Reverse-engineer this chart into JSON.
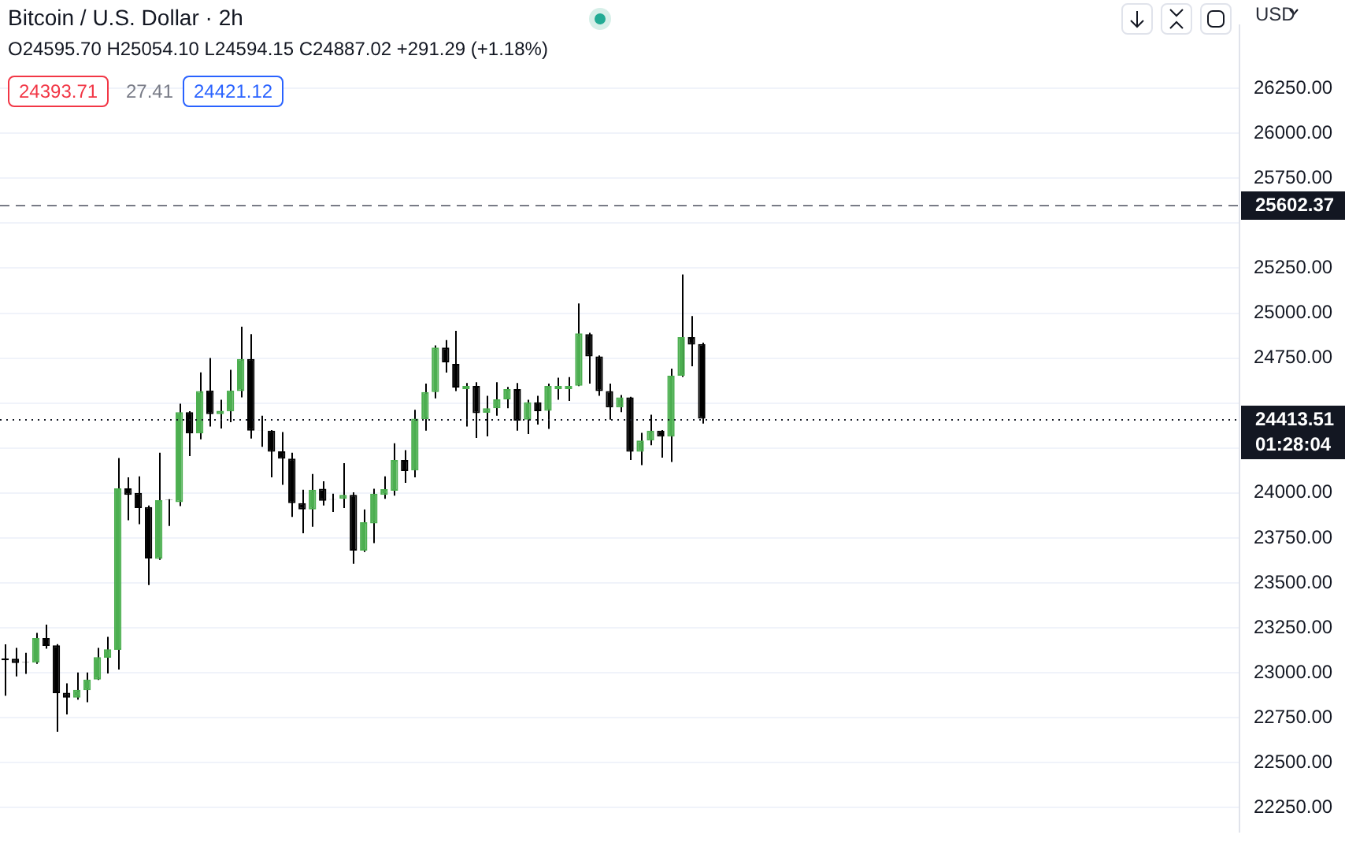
{
  "chart_data": {
    "type": "candlestick",
    "title": "Bitcoin / U.S. Dollar · 2h",
    "subtitle": "O24595.70 H25054.10 L24594.15 C24887.02 +291.29 (+1.18%)",
    "categories": [
      null,
      null,
      null,
      null,
      null,
      null,
      null,
      null,
      null,
      null,
      null,
      null,
      null,
      null,
      null,
      null,
      null,
      null,
      null,
      null,
      null,
      null,
      null,
      null,
      null,
      null,
      null,
      null,
      null,
      null,
      null,
      null,
      null,
      null,
      null,
      null,
      null,
      null,
      null,
      null,
      null,
      null,
      null,
      null,
      null,
      null,
      null,
      null,
      null,
      null,
      null,
      null,
      null,
      null,
      null,
      null,
      null,
      null,
      null,
      null,
      null,
      null,
      null,
      null,
      null,
      null,
      null,
      null,
      null,
      null,
      null,
      null,
      null,
      null,
      null,
      null,
      null,
      null,
      null,
      null,
      null,
      null,
      null,
      null,
      null,
      null,
      null,
      null,
      null,
      null,
      null,
      null,
      null,
      null,
      null,
      null,
      null,
      null,
      null,
      null,
      null,
      null,
      null,
      null,
      null,
      null,
      null,
      null,
      null,
      null,
      null,
      null,
      null,
      null,
      null,
      null,
      null,
      null,
      null,
      null,
      null
    ],
    "ohlc": [
      [
        23080,
        23158,
        22873,
        23070
      ],
      [
        23079,
        23139,
        22980,
        23054
      ],
      [
        23060,
        23112,
        22994,
        23057
      ],
      [
        23057,
        23222,
        23050,
        23194
      ],
      [
        23194,
        23268,
        23134,
        23150
      ],
      [
        23153,
        23160,
        22672,
        22887
      ],
      [
        22889,
        22942,
        22769,
        22862
      ],
      [
        22862,
        23002,
        22851,
        22906
      ],
      [
        22903,
        23002,
        22837,
        22963
      ],
      [
        22963,
        23139,
        22960,
        23087
      ],
      [
        23084,
        23200,
        22996,
        23131
      ],
      [
        23128,
        24194,
        23018,
        24026
      ],
      [
        24026,
        24087,
        23848,
        23990
      ],
      [
        24001,
        24092,
        23826,
        23916
      ],
      [
        23922,
        23930,
        23488,
        23636
      ],
      [
        23634,
        24224,
        23628,
        23960
      ],
      [
        23962,
        23965,
        23817,
        23960
      ],
      [
        23949,
        24496,
        23927,
        24449
      ],
      [
        24449,
        24455,
        24205,
        24331
      ],
      [
        24331,
        24671,
        24298,
        24567
      ],
      [
        24570,
        24751,
        24369,
        24438
      ],
      [
        24438,
        24518,
        24358,
        24457
      ],
      [
        24454,
        24685,
        24394,
        24570
      ],
      [
        24567,
        24924,
        24531,
        24745
      ],
      [
        24745,
        24883,
        24303,
        24347
      ],
      [
        24347,
        24430,
        24257,
        24345
      ],
      [
        24347,
        24350,
        24087,
        24229
      ],
      [
        24232,
        24339,
        24045,
        24191
      ],
      [
        24191,
        24224,
        23867,
        23944
      ],
      [
        23944,
        24018,
        23776,
        23908
      ],
      [
        23908,
        24106,
        23812,
        24018
      ],
      [
        24023,
        24065,
        23930,
        23957
      ],
      [
        23965,
        23996,
        23894,
        23963
      ],
      [
        23968,
        24166,
        23916,
        23990
      ],
      [
        23990,
        24004,
        23606,
        23680
      ],
      [
        23680,
        23908,
        23672,
        23837
      ],
      [
        23831,
        24023,
        23721,
        23996
      ],
      [
        23990,
        24092,
        23968,
        24021
      ],
      [
        24012,
        24276,
        23985,
        24183
      ],
      [
        24183,
        24238,
        24056,
        24122
      ],
      [
        24125,
        24463,
        24087,
        24413
      ],
      [
        24410,
        24608,
        24347,
        24561
      ],
      [
        24561,
        24820,
        24526,
        24809
      ],
      [
        24809,
        24850,
        24669,
        24726
      ],
      [
        24718,
        24902,
        24567,
        24586
      ],
      [
        24578,
        24611,
        24369,
        24595
      ],
      [
        24595,
        24616,
        24306,
        24444
      ],
      [
        24446,
        24540,
        24315,
        24471
      ],
      [
        24471,
        24616,
        24430,
        24520
      ],
      [
        24520,
        24589,
        24471,
        24578
      ],
      [
        24578,
        24611,
        24347,
        24402
      ],
      [
        24408,
        24518,
        24328,
        24504
      ],
      [
        24504,
        24540,
        24380,
        24455
      ],
      [
        24457,
        24608,
        24356,
        24595
      ],
      [
        24578,
        24641,
        24518,
        24595
      ],
      [
        24578,
        24644,
        24512,
        24595
      ],
      [
        24595.7,
        25054.1,
        24594.15,
        24887.02
      ],
      [
        24883,
        24891,
        24608,
        24759
      ],
      [
        24759,
        24765,
        24540,
        24567
      ],
      [
        24567,
        24608,
        24408,
        24476
      ],
      [
        24476,
        24545,
        24449,
        24531
      ],
      [
        24531,
        24535,
        24183,
        24229
      ],
      [
        24229,
        24334,
        24155,
        24292
      ],
      [
        24292,
        24435,
        24265,
        24347
      ],
      [
        24347,
        24350,
        24196,
        24314
      ],
      [
        24314,
        24691,
        24172,
        24652
      ],
      [
        24652,
        25215,
        24645,
        24866
      ],
      [
        24866,
        24984,
        24704,
        24825
      ],
      [
        24828,
        24836,
        24386,
        24413.51
      ],
      null,
      null,
      null,
      null,
      null,
      null,
      null,
      null,
      null,
      null,
      null,
      null,
      null,
      null,
      null,
      null,
      null,
      null,
      null,
      null,
      null,
      null,
      null,
      null,
      null,
      null,
      null,
      null,
      null,
      null,
      null,
      null,
      null,
      null,
      null,
      null,
      null,
      null,
      null,
      null,
      null,
      null,
      null,
      null,
      null,
      null,
      null,
      null,
      null,
      null,
      null,
      null
    ],
    "colors": [
      "#000000",
      "#000000",
      "#000000",
      "#4caf50",
      "#000000",
      "#000000",
      "#000000",
      "#4caf50",
      "#4caf50",
      "#4caf50",
      "#4caf50",
      "#4caf50",
      "#000000",
      "#000000",
      "#000000",
      "#4caf50",
      "#000000",
      "#4caf50",
      "#000000",
      "#4caf50",
      "#000000",
      "#4caf50",
      "#4caf50",
      "#4caf50",
      "#000000",
      "#000000",
      "#000000",
      "#000000",
      "#000000",
      "#000000",
      "#4caf50",
      "#000000",
      "#000000",
      "#4caf50",
      "#000000",
      "#4caf50",
      "#4caf50",
      "#4caf50",
      "#4caf50",
      "#000000",
      "#4caf50",
      "#4caf50",
      "#4caf50",
      "#000000",
      "#000000",
      "#4caf50",
      "#000000",
      "#4caf50",
      "#4caf50",
      "#4caf50",
      "#000000",
      "#4caf50",
      "#000000",
      "#4caf50",
      "#4caf50",
      "#4caf50",
      "#4caf50",
      "#000000",
      "#000000",
      "#000000",
      "#4caf50",
      "#000000",
      "#4caf50",
      "#4caf50",
      "#000000",
      "#4caf50",
      "#4caf50",
      "#000000",
      "#000000",
      null,
      null,
      null,
      null,
      null,
      null,
      null,
      null,
      null,
      null,
      null,
      null,
      null,
      null,
      null,
      null,
      null,
      null,
      null,
      null,
      null,
      null,
      null,
      null,
      null,
      null,
      null,
      null,
      null,
      null,
      null,
      null,
      null,
      null,
      null,
      null,
      null,
      null,
      null,
      null,
      null,
      null,
      null,
      null,
      null,
      null,
      null,
      null,
      null,
      null,
      null,
      null
    ],
    "ylim": [
      22118,
      26599
    ],
    "yticks": [
      {
        "value": 22250,
        "label": "22250.00"
      },
      {
        "value": 22500,
        "label": "22500.00"
      },
      {
        "value": 22750,
        "label": "22750.00"
      },
      {
        "value": 23000,
        "label": "23000.00"
      },
      {
        "value": 23250,
        "label": "23250.00"
      },
      {
        "value": 23500,
        "label": "23500.00"
      },
      {
        "value": 23750,
        "label": "23750.00"
      },
      {
        "value": 24000,
        "label": "24000.00"
      },
      {
        "value": 24250,
        "label": null
      },
      {
        "value": 24500,
        "label": null
      },
      {
        "value": 24750,
        "label": "24750.00"
      },
      {
        "value": 25000,
        "label": "25000.00"
      },
      {
        "value": 25250,
        "label": "25250.00"
      },
      {
        "value": 25500,
        "label": null
      },
      {
        "value": 25750,
        "label": "25750.00"
      },
      {
        "value": 26000,
        "label": "26000.00"
      },
      {
        "value": 26250,
        "label": "26250.00"
      }
    ],
    "grid": "y",
    "legend": false,
    "ref_lines": [
      {
        "axis": "y",
        "value": 25602.37,
        "label": "25602.37",
        "color": "#787b86",
        "line_style": "dashed"
      },
      {
        "axis": "y",
        "value": 24413.51,
        "label": "24413.51",
        "color": "#131722",
        "line_style": "dotted"
      }
    ],
    "annotations": [
      "24393.71",
      "27.41",
      "24421.12",
      "USD",
      "01:28:04"
    ]
  }
}
